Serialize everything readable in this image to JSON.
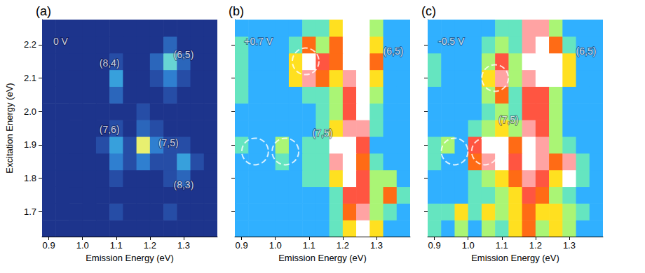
{
  "chart_data": [
    {
      "type": "heatmap",
      "title": "(a)",
      "xlabel": "Emission Energy (eV)",
      "ylabel": "Excitation Energy (eV)",
      "x": [
        0.9,
        0.94,
        0.98,
        1.02,
        1.06,
        1.1,
        1.14,
        1.18,
        1.22,
        1.26,
        1.3,
        1.34,
        1.38
      ],
      "y": [
        1.65,
        1.7,
        1.75,
        1.8,
        1.85,
        1.9,
        1.95,
        2.0,
        2.05,
        2.1,
        2.15,
        2.2,
        2.25
      ],
      "z": [
        [
          1,
          1,
          1,
          1,
          1,
          1,
          1,
          1,
          1,
          1,
          1,
          1,
          1
        ],
        [
          1,
          1,
          1,
          1,
          1,
          2,
          1,
          1,
          1,
          2,
          1,
          1,
          1
        ],
        [
          1,
          1,
          1,
          1,
          1,
          1,
          1,
          1,
          1,
          1,
          1,
          1,
          1
        ],
        [
          1,
          1,
          1,
          1,
          1,
          2,
          1,
          1,
          1,
          2,
          3,
          1,
          1
        ],
        [
          1,
          1,
          1,
          1,
          1,
          4,
          2,
          4,
          2,
          2,
          5,
          2,
          1
        ],
        [
          1,
          1,
          1,
          1,
          2,
          5,
          2,
          10,
          4,
          2,
          2,
          1,
          1
        ],
        [
          1,
          1,
          1,
          1,
          1,
          2,
          1,
          3,
          2,
          1,
          1,
          1,
          1
        ],
        [
          1,
          1,
          1,
          1,
          1,
          1,
          1,
          2,
          1,
          1,
          1,
          1,
          1
        ],
        [
          1,
          1,
          1,
          1,
          1,
          3,
          1,
          1,
          1,
          2,
          1,
          1,
          1
        ],
        [
          1,
          1,
          1,
          1,
          1,
          5,
          1,
          1,
          2,
          4,
          2,
          1,
          1
        ],
        [
          1,
          1,
          1,
          1,
          1,
          2,
          1,
          1,
          3,
          7,
          3,
          1,
          1
        ],
        [
          1,
          1,
          1,
          1,
          1,
          1,
          1,
          1,
          1,
          3,
          1,
          1,
          1
        ],
        [
          1,
          1,
          1,
          1,
          1,
          1,
          1,
          1,
          1,
          1,
          1,
          1,
          1
        ]
      ],
      "clim": [
        0,
        10
      ],
      "xlim": [
        0.88,
        1.4
      ],
      "ylim": [
        1.625,
        2.275
      ],
      "xticks": [
        0.9,
        {
          "value": 1.0,
          "label": "1.0"
        },
        1.1,
        1.2,
        1.3
      ],
      "yticks": [
        1.7,
        1.8,
        1.9,
        {
          "value": 2.0,
          "label": "2.0"
        },
        2.1,
        2.2
      ],
      "annotations": [
        {
          "text": "0 V",
          "x": 0.935,
          "y": 2.21
        },
        {
          "text": "(8,4)",
          "x": 1.08,
          "y": 2.145
        },
        {
          "text": "(6,5)",
          "x": 1.3,
          "y": 2.17
        },
        {
          "text": "(7,6)",
          "x": 1.08,
          "y": 1.945
        },
        {
          "text": "(7,5)",
          "x": 1.255,
          "y": 1.905
        },
        {
          "text": "(8,3)",
          "x": 1.3,
          "y": 1.78
        }
      ]
    },
    {
      "type": "heatmap",
      "title": "(b)",
      "xlabel": "Emission Energy (eV)",
      "tick_labels": "x",
      "x": [
        0.9,
        0.94,
        0.98,
        1.02,
        1.06,
        1.1,
        1.14,
        1.18,
        1.22,
        1.26,
        1.3,
        1.34,
        1.38
      ],
      "y": [
        1.65,
        1.7,
        1.75,
        1.8,
        1.85,
        1.9,
        1.95,
        2.0,
        2.05,
        2.1,
        2.15,
        2.2,
        2.25
      ],
      "z": [
        [
          3,
          3,
          3,
          3,
          3,
          3,
          3,
          4,
          6,
          10,
          6,
          3,
          3
        ],
        [
          3,
          3,
          3,
          3,
          3,
          3,
          3,
          4,
          7,
          9,
          5,
          4,
          3
        ],
        [
          3,
          3,
          3,
          3,
          3,
          3,
          3,
          4,
          8,
          8,
          5,
          7,
          4
        ],
        [
          3,
          3,
          3,
          3,
          3,
          4,
          4,
          6,
          10,
          8,
          5,
          5,
          3
        ],
        [
          3,
          3,
          3,
          4,
          3,
          4,
          4,
          9,
          10,
          7,
          4,
          3,
          3
        ],
        [
          4,
          3,
          3,
          5,
          3,
          4,
          4,
          10,
          10,
          8,
          3,
          3,
          3
        ],
        [
          3,
          3,
          3,
          3,
          3,
          3,
          4,
          6,
          9,
          9,
          4,
          3,
          3
        ],
        [
          3,
          3,
          3,
          3,
          3,
          3,
          4,
          5,
          8,
          10,
          4,
          3,
          3
        ],
        [
          4,
          3,
          3,
          3,
          3,
          4,
          4,
          5,
          8,
          10,
          5,
          3,
          3
        ],
        [
          4,
          3,
          3,
          3,
          6,
          9,
          7,
          6,
          9,
          10,
          6,
          3,
          3
        ],
        [
          4,
          3,
          3,
          3,
          6,
          10,
          8,
          7,
          10,
          10,
          7,
          3,
          3
        ],
        [
          4,
          3,
          3,
          3,
          4,
          7,
          5,
          7,
          10,
          10,
          6,
          3,
          3
        ],
        [
          3,
          3,
          3,
          3,
          3,
          4,
          4,
          6,
          10,
          10,
          5,
          3,
          3
        ]
      ],
      "clim": [
        0,
        10
      ],
      "xlim": [
        0.88,
        1.4
      ],
      "ylim": [
        1.625,
        2.275
      ],
      "xticks": [
        0.9,
        {
          "value": 1.0,
          "label": "1.0"
        },
        1.1,
        1.2,
        1.3
      ],
      "yticks": [
        1.7,
        1.8,
        1.9,
        {
          "value": 2.0,
          "label": "2.0"
        },
        2.1,
        2.2
      ],
      "annotations": [
        {
          "text": "+0.7 V",
          "x": 0.95,
          "y": 2.21
        },
        {
          "text": "(6,5)",
          "x": 1.35,
          "y": 2.18
        },
        {
          "text": "(7,5)",
          "x": 1.14,
          "y": 1.935
        }
      ],
      "circles": [
        [
          0.94,
          1.88
        ],
        [
          1.03,
          1.88
        ],
        [
          1.09,
          2.15
        ]
      ]
    },
    {
      "type": "heatmap",
      "title": "(c)",
      "xlabel": "Emission Energy (eV)",
      "tick_labels": "x",
      "x": [
        0.9,
        0.94,
        0.98,
        1.02,
        1.06,
        1.1,
        1.14,
        1.18,
        1.22,
        1.26,
        1.3,
        1.34,
        1.38
      ],
      "y": [
        1.65,
        1.7,
        1.75,
        1.8,
        1.85,
        1.9,
        1.95,
        2.0,
        2.05,
        2.1,
        2.15,
        2.2,
        2.25
      ],
      "z": [
        [
          4,
          3,
          5,
          3,
          5,
          4,
          6,
          7,
          5,
          6,
          5,
          3,
          3
        ],
        [
          4,
          4,
          6,
          4,
          6,
          5,
          6,
          7,
          6,
          6,
          5,
          4,
          3
        ],
        [
          3,
          3,
          3,
          4,
          4,
          5,
          6,
          8,
          7,
          5,
          4,
          3,
          3
        ],
        [
          3,
          3,
          3,
          4,
          5,
          6,
          7,
          9,
          8,
          6,
          10,
          4,
          3
        ],
        [
          4,
          3,
          3,
          7,
          9,
          10,
          8,
          10,
          9,
          7,
          9,
          4,
          3
        ],
        [
          4,
          5,
          3,
          8,
          10,
          10,
          7,
          10,
          9,
          5,
          4,
          3,
          3
        ],
        [
          3,
          3,
          3,
          4,
          5,
          6,
          5,
          9,
          8,
          5,
          3,
          3,
          3
        ],
        [
          3,
          3,
          3,
          3,
          4,
          5,
          4,
          8,
          8,
          5,
          3,
          3,
          3
        ],
        [
          3,
          3,
          3,
          3,
          5,
          7,
          4,
          8,
          8,
          5,
          3,
          3,
          3
        ],
        [
          4,
          3,
          3,
          3,
          6,
          9,
          5,
          9,
          10,
          10,
          6,
          3,
          3
        ],
        [
          4,
          3,
          3,
          3,
          5,
          8,
          5,
          10,
          10,
          10,
          6,
          3,
          3
        ],
        [
          3,
          3,
          3,
          3,
          4,
          5,
          4,
          9,
          10,
          7,
          4,
          3,
          3
        ],
        [
          3,
          3,
          3,
          3,
          3,
          4,
          4,
          9,
          9,
          5,
          3,
          3,
          3
        ]
      ],
      "clim": [
        0,
        10
      ],
      "xlim": [
        0.88,
        1.4
      ],
      "ylim": [
        1.625,
        2.275
      ],
      "xticks": [
        0.9,
        {
          "value": 1.0,
          "label": "1.0"
        },
        1.1,
        1.2,
        1.3
      ],
      "yticks": [
        1.7,
        1.8,
        1.9,
        {
          "value": 2.0,
          "label": "2.0"
        },
        2.1,
        2.2
      ],
      "annotations": [
        {
          "text": "-0.5 V",
          "x": 0.95,
          "y": 2.21
        },
        {
          "text": "(6,5)",
          "x": 1.35,
          "y": 2.18
        },
        {
          "text": "(7,5)",
          "x": 1.12,
          "y": 1.975
        }
      ],
      "circles": [
        [
          0.96,
          1.88
        ],
        [
          1.05,
          1.88
        ],
        [
          1.08,
          2.1
        ]
      ]
    }
  ]
}
